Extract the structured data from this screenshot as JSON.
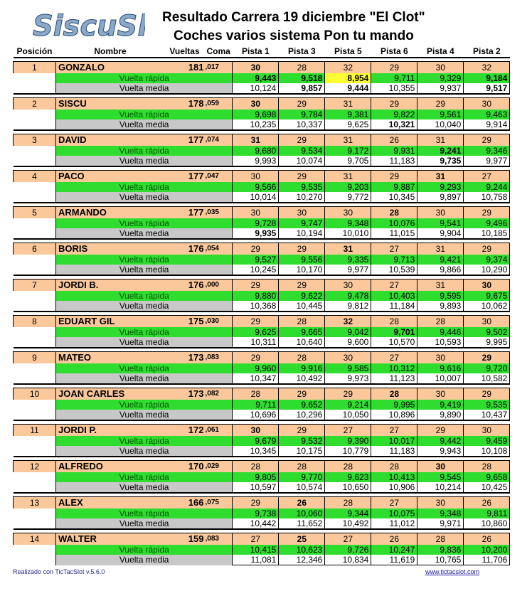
{
  "logo": {
    "text": "SiscuSlot"
  },
  "header": {
    "title_line1": "Resultado  Carrera  19 diciembre \"El Clot\"",
    "title_line2": "Coches varios sistema Pon tu mando"
  },
  "columns": {
    "position": "Posición",
    "name": "Nombre",
    "laps": "Vueltas",
    "coma": "Coma",
    "tracks": [
      "Pista 1",
      "Pista 3",
      "Pista 5",
      "Pista 6",
      "Pista 4",
      "Pista 2"
    ]
  },
  "row_labels": {
    "fast": "Vuelta rápida",
    "avg": "Vuelta media"
  },
  "drivers": [
    {
      "pos": "1",
      "name": "GONZALO",
      "laps": "181",
      "coma": ",017",
      "tracks": [
        "30",
        "28",
        "32",
        "29",
        "30",
        "32"
      ],
      "fast": [
        "9,443",
        "9,518",
        "8,954",
        "9,711",
        "9,329",
        "9,184"
      ],
      "avg": [
        "10,124",
        "9,857",
        "9,444",
        "10,355",
        "9,937",
        "9,517"
      ]
    },
    {
      "pos": "2",
      "name": "SISCU",
      "laps": "178",
      "coma": ",059",
      "tracks": [
        "30",
        "29",
        "31",
        "29",
        "29",
        "30"
      ],
      "fast": [
        "9,698",
        "9,784",
        "9,381",
        "9,822",
        "9,561",
        "9,463"
      ],
      "avg": [
        "10,235",
        "10,337",
        "9,625",
        "10,321",
        "10,040",
        "9,914"
      ]
    },
    {
      "pos": "3",
      "name": "DAVID",
      "laps": "177",
      "coma": ",074",
      "tracks": [
        "31",
        "29",
        "31",
        "26",
        "31",
        "29"
      ],
      "fast": [
        "9,680",
        "9,534",
        "9,172",
        "9,931",
        "9,241",
        "9,346"
      ],
      "avg": [
        "9,993",
        "10,074",
        "9,705",
        "11,183",
        "9,735",
        "9,977"
      ]
    },
    {
      "pos": "4",
      "name": "PACO",
      "laps": "177",
      "coma": ",047",
      "tracks": [
        "30",
        "29",
        "31",
        "29",
        "31",
        "27"
      ],
      "fast": [
        "9,566",
        "9,535",
        "9,203",
        "9,887",
        "9,293",
        "9,244"
      ],
      "avg": [
        "10,014",
        "10,270",
        "9,772",
        "10,345",
        "9,897",
        "10,758"
      ]
    },
    {
      "pos": "5",
      "name": "ARMANDO",
      "laps": "177",
      "coma": ",035",
      "tracks": [
        "30",
        "30",
        "30",
        "28",
        "30",
        "29"
      ],
      "fast": [
        "9,728",
        "9,747",
        "9,348",
        "10,076",
        "9,541",
        "9,496"
      ],
      "avg": [
        "9,935",
        "10,194",
        "10,010",
        "11,015",
        "9,904",
        "10,185"
      ]
    },
    {
      "pos": "6",
      "name": "BORIS",
      "laps": "176",
      "coma": ",054",
      "tracks": [
        "29",
        "29",
        "31",
        "27",
        "31",
        "29"
      ],
      "fast": [
        "9,527",
        "9,556",
        "9,335",
        "9,713",
        "9,421",
        "9,374"
      ],
      "avg": [
        "10,245",
        "10,170",
        "9,977",
        "10,539",
        "9,866",
        "10,290"
      ]
    },
    {
      "pos": "7",
      "name": "JORDI B.",
      "laps": "176",
      "coma": ",000",
      "tracks": [
        "29",
        "29",
        "30",
        "27",
        "31",
        "30"
      ],
      "fast": [
        "9,880",
        "9,622",
        "9,478",
        "10,403",
        "9,595",
        "9,675"
      ],
      "avg": [
        "10,368",
        "10,445",
        "9,812",
        "11,184",
        "9,893",
        "10,062"
      ]
    },
    {
      "pos": "8",
      "name": "EDUART GIL",
      "laps": "175",
      "coma": ",030",
      "tracks": [
        "29",
        "28",
        "32",
        "28",
        "28",
        "30"
      ],
      "fast": [
        "9,625",
        "9,665",
        "9,042",
        "9,701",
        "9,446",
        "9,502"
      ],
      "avg": [
        "10,311",
        "10,640",
        "9,600",
        "10,570",
        "10,593",
        "9,995"
      ]
    },
    {
      "pos": "9",
      "name": "MATEO",
      "laps": "173",
      "coma": ",083",
      "tracks": [
        "29",
        "28",
        "30",
        "27",
        "30",
        "29"
      ],
      "fast": [
        "9,960",
        "9,916",
        "9,585",
        "10,312",
        "9,616",
        "9,720"
      ],
      "avg": [
        "10,347",
        "10,492",
        "9,973",
        "11,123",
        "10,007",
        "10,582"
      ]
    },
    {
      "pos": "10",
      "name": "JOAN CARLES",
      "laps": "173",
      "coma": ",082",
      "tracks": [
        "28",
        "29",
        "29",
        "28",
        "30",
        "29"
      ],
      "fast": [
        "9,711",
        "9,652",
        "9,214",
        "9,995",
        "9,419",
        "9,535"
      ],
      "avg": [
        "10,696",
        "10,296",
        "10,050",
        "10,896",
        "9,890",
        "10,437"
      ]
    },
    {
      "pos": "11",
      "name": "JORDI P.",
      "laps": "172",
      "coma": ",061",
      "tracks": [
        "30",
        "29",
        "27",
        "27",
        "29",
        "30"
      ],
      "fast": [
        "9,679",
        "9,532",
        "9,390",
        "10,017",
        "9,442",
        "9,459"
      ],
      "avg": [
        "10,345",
        "10,175",
        "10,779",
        "11,183",
        "9,943",
        "10,108"
      ]
    },
    {
      "pos": "12",
      "name": "ALFREDO",
      "laps": "170",
      "coma": ",029",
      "tracks": [
        "28",
        "28",
        "28",
        "28",
        "30",
        "28"
      ],
      "fast": [
        "9,805",
        "9,770",
        "9,623",
        "10,413",
        "9,545",
        "9,658"
      ],
      "avg": [
        "10,597",
        "10,574",
        "10,650",
        "10,906",
        "10,214",
        "10,425"
      ]
    },
    {
      "pos": "13",
      "name": "ALEX",
      "laps": "166",
      "coma": ",075",
      "tracks": [
        "29",
        "26",
        "28",
        "27",
        "30",
        "26"
      ],
      "fast": [
        "9,738",
        "10,060",
        "9,344",
        "10,075",
        "9,348",
        "9,811"
      ],
      "avg": [
        "10,442",
        "11,652",
        "10,492",
        "11,012",
        "9,971",
        "10,860"
      ]
    },
    {
      "pos": "14",
      "name": "WALTER",
      "laps": "159",
      "coma": ",083",
      "tracks": [
        "27",
        "25",
        "27",
        "26",
        "28",
        "26"
      ],
      "fast": [
        "10,415",
        "10,623",
        "9,726",
        "10,247",
        "9,836",
        "10,200"
      ],
      "avg": [
        "11,081",
        "12,346",
        "10,834",
        "11,619",
        "10,765",
        "11,706"
      ]
    }
  ],
  "emphasis": {
    "bold": [
      "0.tracks.0",
      "0.fast.0",
      "0.fast.1",
      "0.fast.2",
      "0.fast.5",
      "0.avg.1",
      "0.avg.2",
      "0.avg.5",
      "1.tracks.0",
      "1.avg.3",
      "2.tracks.0",
      "2.fast.4",
      "2.avg.4",
      "3.tracks.4",
      "4.tracks.3",
      "4.avg.0",
      "5.tracks.2",
      "6.tracks.5",
      "7.tracks.2",
      "7.fast.3",
      "8.tracks.5",
      "9.tracks.3",
      "10.tracks.0",
      "11.tracks.4",
      "12.tracks.1",
      "13.tracks.1"
    ],
    "highlight": [
      "0.fast.2"
    ],
    "highlight_color": "#ffff33"
  },
  "colors": {
    "driver_row": "#fbc89b",
    "fast_row": "#2fdd2f",
    "avg_label": "#c8c8c8"
  },
  "footer": {
    "left": "Realizado con TicTacSlot v.5.6.0",
    "right": "www.tictacslot.com"
  }
}
